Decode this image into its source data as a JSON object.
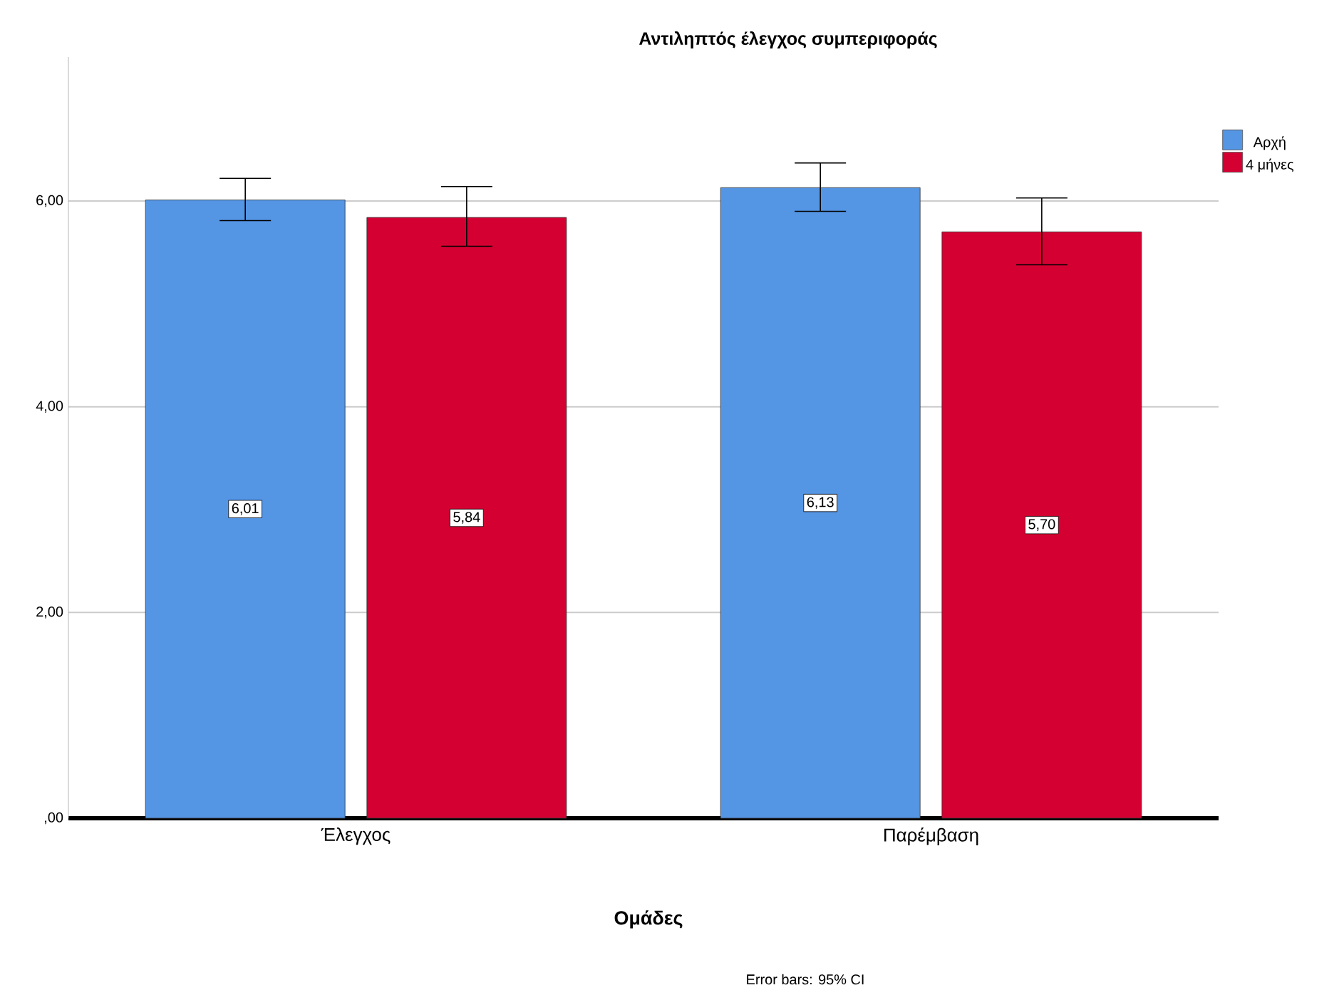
{
  "chart_data": {
    "type": "bar",
    "title": "Αντιληπτός έλεγχος συμπεριφοράς",
    "xlabel": "Ομάδες",
    "annotations": [
      "Error bars: 95% CI"
    ],
    "categories": [
      "Έλεγχος",
      "Παρέμβαση"
    ],
    "series": [
      {
        "name": "Αρχή",
        "color": "#5495e4",
        "values": [
          6.01,
          6.13
        ],
        "value_labels": [
          "6,01",
          "6,13"
        ],
        "errors": [
          [
            5.81,
            6.22
          ],
          [
            5.9,
            6.37
          ]
        ]
      },
      {
        "name": "4 μήνες",
        "color": "#d50032",
        "values": [
          5.84,
          5.7
        ],
        "value_labels": [
          "5,84",
          "5,70"
        ],
        "errors": [
          [
            5.56,
            6.14
          ],
          [
            5.38,
            6.03
          ]
        ]
      }
    ],
    "ylim": [
      0,
      7.4
    ],
    "yticks": [
      {
        "value": 0,
        "label": ",00"
      },
      {
        "value": 2,
        "label": "2,00"
      },
      {
        "value": 4,
        "label": "4,00"
      },
      {
        "value": 6,
        "label": "6,00"
      }
    ],
    "grid": "y",
    "legend": "top right"
  }
}
